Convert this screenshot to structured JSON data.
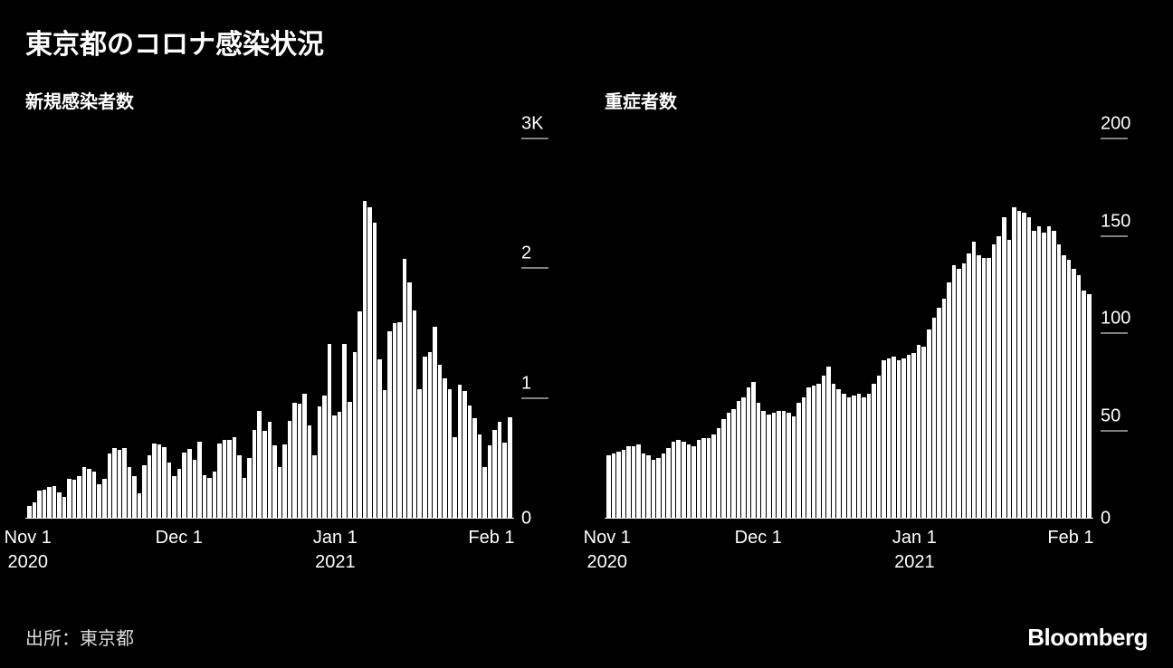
{
  "title": "東京都のコロナ感染状況",
  "source": "出所：東京都",
  "brand": "Bloomberg",
  "colors": {
    "background": "#000000",
    "bar": "#ffffff",
    "text": "#ffffff",
    "source_text": "#dcdcdc"
  },
  "charts": [
    {
      "subtitle": "新規感染者数",
      "type": "bar",
      "ylim": [
        0,
        3000
      ],
      "yticks": [
        {
          "value": 0,
          "label": "0",
          "underline": false
        },
        {
          "value": 1000,
          "label": "1",
          "underline": true
        },
        {
          "value": 2000,
          "label": "2",
          "underline": true
        },
        {
          "value": 3000,
          "label": "3K",
          "underline": true
        }
      ],
      "xticks": [
        {
          "index": 0,
          "line1": "Nov 1",
          "line2": "2020"
        },
        {
          "index": 30,
          "line1": "Dec 1",
          "line2": ""
        },
        {
          "index": 61,
          "line1": "Jan 1",
          "line2": "2021"
        },
        {
          "index": 92,
          "line1": "Feb 1",
          "line2": ""
        }
      ],
      "values": [
        90,
        120,
        210,
        215,
        240,
        245,
        195,
        160,
        300,
        295,
        320,
        395,
        375,
        355,
        260,
        300,
        495,
        540,
        525,
        540,
        395,
        320,
        190,
        405,
        485,
        575,
        565,
        545,
        425,
        320,
        375,
        505,
        535,
        450,
        590,
        330,
        305,
        355,
        575,
        600,
        605,
        625,
        485,
        310,
        465,
        680,
        825,
        670,
        740,
        560,
        395,
        565,
        750,
        890,
        880,
        955,
        715,
        485,
        860,
        945,
        1345,
        790,
        820,
        1340,
        895,
        1280,
        1595,
        2450,
        2400,
        2280,
        1225,
        985,
        1440,
        1505,
        1510,
        2000,
        1815,
        1600,
        990,
        1245,
        1280,
        1475,
        1180,
        1075,
        990,
        625,
        1030,
        980,
        870,
        770,
        640,
        395,
        560,
        680,
        740,
        580,
        775
      ]
    },
    {
      "subtitle": "重症者数",
      "type": "bar",
      "ylim": [
        0,
        200
      ],
      "yticks": [
        {
          "value": 0,
          "label": "0",
          "underline": false
        },
        {
          "value": 50,
          "label": "50",
          "underline": true
        },
        {
          "value": 100,
          "label": "100",
          "underline": true
        },
        {
          "value": 150,
          "label": "150",
          "underline": true
        },
        {
          "value": 200,
          "label": "200",
          "underline": true
        }
      ],
      "xticks": [
        {
          "index": 0,
          "line1": "Nov 1",
          "line2": "2020"
        },
        {
          "index": 30,
          "line1": "Dec 1",
          "line2": ""
        },
        {
          "index": 61,
          "line1": "Jan 1",
          "line2": "2021"
        },
        {
          "index": 92,
          "line1": "Feb 1",
          "line2": ""
        }
      ],
      "values": [
        32,
        33,
        34,
        35,
        37,
        37,
        38,
        33,
        32,
        30,
        31,
        33,
        36,
        39,
        40,
        39,
        38,
        37,
        40,
        41,
        41,
        43,
        46,
        51,
        54,
        56,
        60,
        62,
        67,
        70,
        59,
        55,
        53,
        54,
        55,
        55,
        54,
        52,
        59,
        62,
        67,
        68,
        69,
        73,
        78,
        69,
        66,
        64,
        62,
        63,
        64,
        62,
        64,
        69,
        73,
        81,
        82,
        83,
        81,
        82,
        84,
        85,
        89,
        88,
        97,
        103,
        108,
        113,
        121,
        130,
        128,
        131,
        136,
        142,
        135,
        134,
        134,
        141,
        145,
        155,
        143,
        160,
        158,
        157,
        155,
        148,
        150,
        147,
        150,
        148,
        141,
        135,
        133,
        128,
        125,
        117,
        115
      ]
    }
  ]
}
